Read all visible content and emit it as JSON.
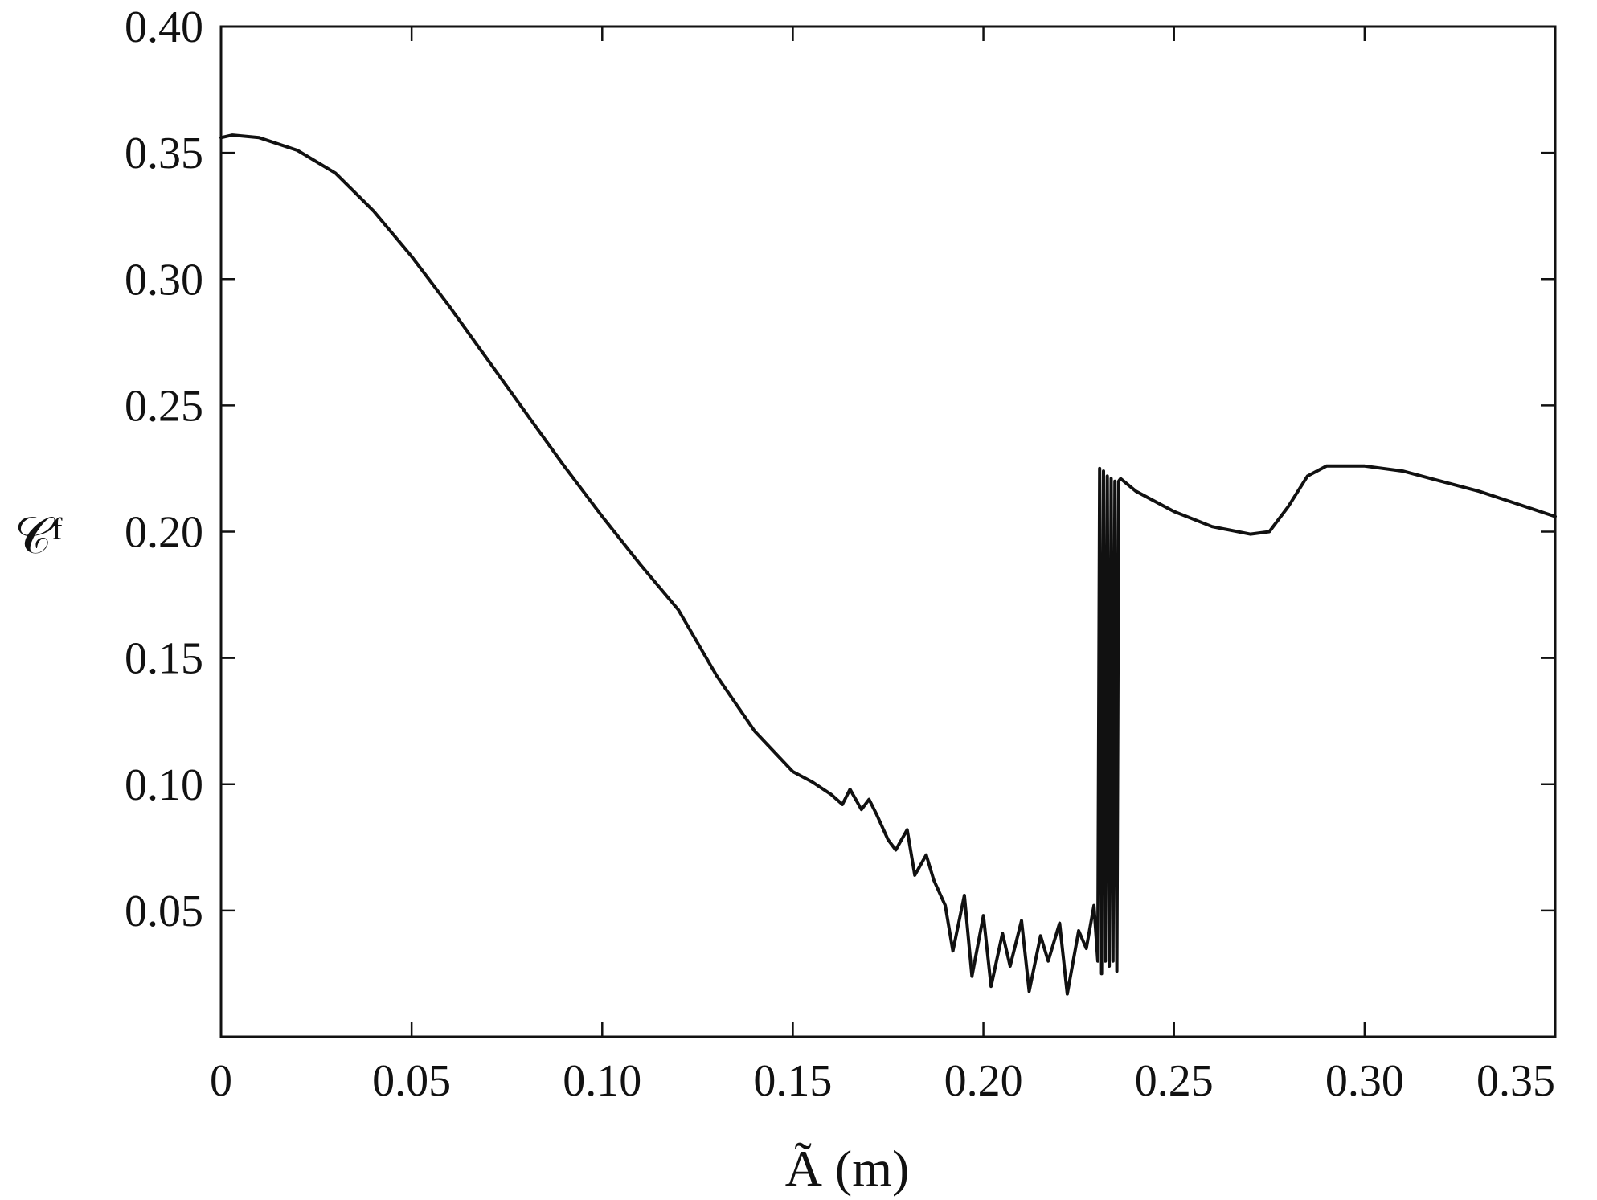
{
  "chart_data": {
    "type": "line",
    "xlabel": "Ã (m)",
    "ylabel": "𝒞ᶠ",
    "xlim": [
      0,
      0.35
    ],
    "ylim": [
      0.0,
      0.4
    ],
    "x_ticks": [
      0,
      0.05,
      0.1,
      0.15,
      0.2,
      0.25,
      0.3,
      0.35
    ],
    "x_tick_labels": [
      "0",
      "0.05",
      "0.10",
      "0.15",
      "0.20",
      "0.25",
      "0.30",
      "0.35"
    ],
    "y_ticks": [
      0.05,
      0.1,
      0.15,
      0.2,
      0.25,
      0.3,
      0.35,
      0.4
    ],
    "y_tick_labels": [
      "0.05",
      "0.10",
      "0.15",
      "0.20",
      "0.25",
      "0.30",
      "0.35",
      "0.40"
    ],
    "grid": false,
    "series": [
      {
        "x": [
          0.0,
          0.003,
          0.01,
          0.02,
          0.03,
          0.04,
          0.05,
          0.06,
          0.07,
          0.08,
          0.09,
          0.1,
          0.11,
          0.12,
          0.13,
          0.14,
          0.15,
          0.155,
          0.16,
          0.163,
          0.165,
          0.168,
          0.17,
          0.172,
          0.175,
          0.177,
          0.18,
          0.182,
          0.185,
          0.187,
          0.19,
          0.192,
          0.195,
          0.197,
          0.2,
          0.202,
          0.205,
          0.207,
          0.21,
          0.212,
          0.215,
          0.217,
          0.22,
          0.222,
          0.225,
          0.227,
          0.229,
          0.23,
          0.2305,
          0.231,
          0.2315,
          0.232,
          0.2325,
          0.233,
          0.2335,
          0.234,
          0.2345,
          0.235,
          0.2355,
          0.236,
          0.24,
          0.25,
          0.26,
          0.27,
          0.275,
          0.28,
          0.285,
          0.29,
          0.3,
          0.31,
          0.32,
          0.33,
          0.34,
          0.35
        ],
        "values": [
          0.356,
          0.357,
          0.356,
          0.351,
          0.342,
          0.327,
          0.309,
          0.289,
          0.268,
          0.247,
          0.226,
          0.206,
          0.187,
          0.169,
          0.143,
          0.121,
          0.105,
          0.101,
          0.096,
          0.092,
          0.098,
          0.09,
          0.094,
          0.088,
          0.078,
          0.074,
          0.082,
          0.064,
          0.072,
          0.062,
          0.052,
          0.034,
          0.056,
          0.024,
          0.048,
          0.02,
          0.041,
          0.028,
          0.046,
          0.018,
          0.04,
          0.03,
          0.045,
          0.017,
          0.042,
          0.035,
          0.052,
          0.03,
          0.225,
          0.025,
          0.224,
          0.03,
          0.222,
          0.028,
          0.221,
          0.03,
          0.22,
          0.026,
          0.22,
          0.221,
          0.216,
          0.208,
          0.202,
          0.199,
          0.2,
          0.21,
          0.222,
          0.226,
          0.226,
          0.224,
          0.22,
          0.216,
          0.211,
          0.206
        ]
      }
    ]
  }
}
